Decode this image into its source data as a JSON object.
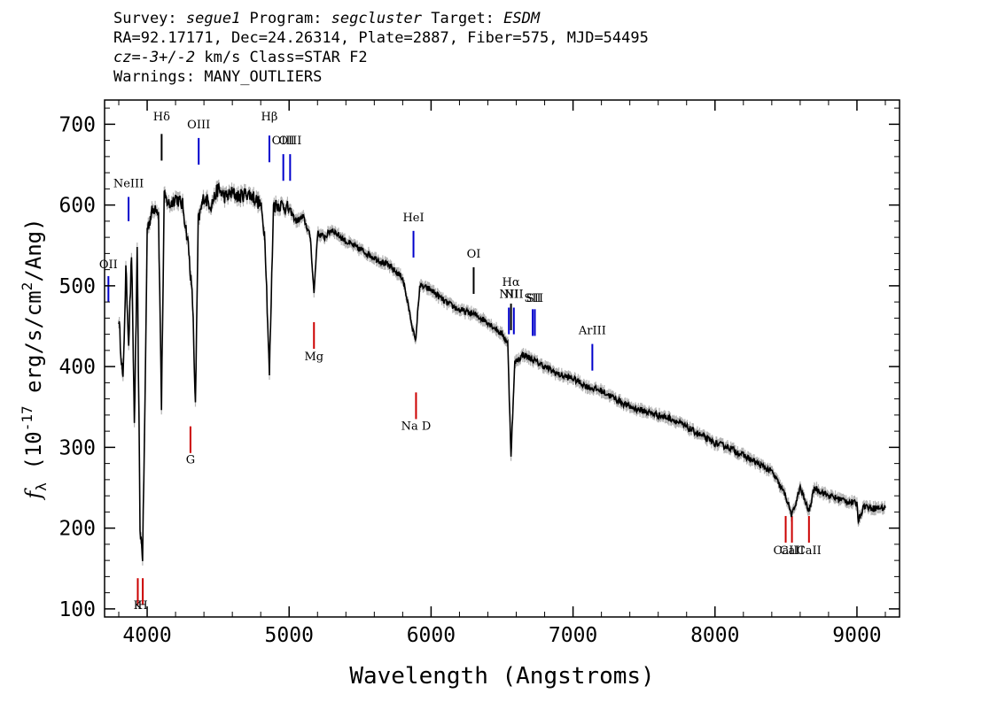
{
  "header": {
    "line1": {
      "survey_label": "Survey: ",
      "survey": "segue1",
      "program_label": " Program: ",
      "program": "segcluster",
      "target_label": " Target: ",
      "target": "ESDM"
    },
    "line2": "RA=92.17171, Dec=24.26314, Plate=2887, Fiber=575, MJD=54495",
    "line3": {
      "cz": "cz=-3+/-2",
      "rest": " km/s  Class=STAR F2"
    },
    "line4": "Warnings: MANY_OUTLIERS"
  },
  "chart_data": {
    "type": "line",
    "xlabel": "Wavelength (Angstroms)",
    "ylabel": "f_λ (10^-17 erg/s/cm^2/Ang)",
    "xlim": [
      3700,
      9300
    ],
    "ylim": [
      90,
      730
    ],
    "x_ticks": [
      4000,
      5000,
      6000,
      7000,
      8000,
      9000
    ],
    "y_ticks": [
      100,
      200,
      300,
      400,
      500,
      600,
      700
    ],
    "series": [
      {
        "color": "#000000",
        "error_color": "#b4b4b4",
        "points": [
          [
            3800,
            460
          ],
          [
            3830,
            380
          ],
          [
            3850,
            520
          ],
          [
            3870,
            430
          ],
          [
            3890,
            540
          ],
          [
            3910,
            330
          ],
          [
            3930,
            540
          ],
          [
            3950,
            200
          ],
          [
            3968,
            165
          ],
          [
            3985,
            360
          ],
          [
            4000,
            570
          ],
          [
            4030,
            590
          ],
          [
            4060,
            600
          ],
          [
            4080,
            590
          ],
          [
            4101,
            350
          ],
          [
            4120,
            610
          ],
          [
            4160,
            600
          ],
          [
            4200,
            610
          ],
          [
            4250,
            600
          ],
          [
            4290,
            550
          ],
          [
            4320,
            480
          ],
          [
            4340,
            350
          ],
          [
            4360,
            580
          ],
          [
            4400,
            610
          ],
          [
            4450,
            600
          ],
          [
            4500,
            620
          ],
          [
            4550,
            610
          ],
          [
            4600,
            615
          ],
          [
            4650,
            610
          ],
          [
            4700,
            615
          ],
          [
            4750,
            610
          ],
          [
            4800,
            600
          ],
          [
            4830,
            560
          ],
          [
            4861,
            390
          ],
          [
            4890,
            600
          ],
          [
            4950,
            600
          ],
          [
            5000,
            595
          ],
          [
            5050,
            580
          ],
          [
            5100,
            585
          ],
          [
            5150,
            560
          ],
          [
            5175,
            490
          ],
          [
            5200,
            565
          ],
          [
            5250,
            560
          ],
          [
            5300,
            570
          ],
          [
            5400,
            555
          ],
          [
            5500,
            545
          ],
          [
            5600,
            535
          ],
          [
            5700,
            525
          ],
          [
            5800,
            510
          ],
          [
            5890,
            430
          ],
          [
            5920,
            500
          ],
          [
            6000,
            495
          ],
          [
            6100,
            480
          ],
          [
            6200,
            470
          ],
          [
            6300,
            465
          ],
          [
            6400,
            455
          ],
          [
            6500,
            440
          ],
          [
            6540,
            430
          ],
          [
            6563,
            290
          ],
          [
            6590,
            405
          ],
          [
            6650,
            415
          ],
          [
            6700,
            410
          ],
          [
            6800,
            400
          ],
          [
            6900,
            390
          ],
          [
            7000,
            385
          ],
          [
            7100,
            375
          ],
          [
            7200,
            370
          ],
          [
            7300,
            360
          ],
          [
            7400,
            350
          ],
          [
            7500,
            345
          ],
          [
            7600,
            340
          ],
          [
            7700,
            335
          ],
          [
            7800,
            325
          ],
          [
            7900,
            315
          ],
          [
            8000,
            305
          ],
          [
            8100,
            300
          ],
          [
            8200,
            290
          ],
          [
            8300,
            280
          ],
          [
            8400,
            270
          ],
          [
            8498,
            240
          ],
          [
            8542,
            215
          ],
          [
            8600,
            250
          ],
          [
            8662,
            220
          ],
          [
            8700,
            250
          ],
          [
            8800,
            240
          ],
          [
            8900,
            235
          ],
          [
            9000,
            230
          ],
          [
            9010,
            210
          ],
          [
            9050,
            228
          ],
          [
            9100,
            225
          ],
          [
            9200,
            225
          ]
        ]
      }
    ],
    "emission_lines": [
      {
        "label": "NeIII",
        "x": 3869,
        "y_lo": 580,
        "y_hi": 610,
        "label_y": 622,
        "color": "#0000cc"
      },
      {
        "label": "OII",
        "x": 3727,
        "y_lo": 480,
        "y_hi": 512,
        "label_y": 522,
        "color": "#0000cc"
      },
      {
        "label": "Hδ",
        "x": 4102,
        "y_lo": 655,
        "y_hi": 688,
        "label_y": 705,
        "color": "#000000"
      },
      {
        "label": "OIII",
        "x": 4363,
        "y_lo": 650,
        "y_hi": 683,
        "label_y": 695,
        "color": "#0000cc"
      },
      {
        "label": "Hβ",
        "x": 4861,
        "y_lo": 653,
        "y_hi": 686,
        "label_y": 705,
        "color": "#0000cc"
      },
      {
        "label": "OIII",
        "x": 4959,
        "y_lo": 630,
        "y_hi": 663,
        "label_y": 675,
        "color": "#0000cc"
      },
      {
        "label": "OIII",
        "x": 5007,
        "y_lo": 630,
        "y_hi": 663,
        "label_y": 675,
        "color": "#0000cc"
      },
      {
        "label": "HeI",
        "x": 5876,
        "y_lo": 535,
        "y_hi": 568,
        "label_y": 580,
        "color": "#0000cc"
      },
      {
        "label": "OI",
        "x": 6300,
        "y_lo": 490,
        "y_hi": 523,
        "label_y": 535,
        "color": "#000000"
      },
      {
        "label": "NII",
        "x": 6548,
        "y_lo": 440,
        "y_hi": 473,
        "label_y": 485,
        "color": "#0000cc"
      },
      {
        "label": "Hα",
        "x": 6563,
        "y_lo": 445,
        "y_hi": 478,
        "label_y": 500,
        "color": "#000000"
      },
      {
        "label": "NII",
        "x": 6583,
        "y_lo": 440,
        "y_hi": 473,
        "label_y": 485,
        "color": "#0000cc"
      },
      {
        "label": "SII",
        "x": 6716,
        "y_lo": 438,
        "y_hi": 471,
        "label_y": 480,
        "color": "#0000cc"
      },
      {
        "label": "SII",
        "x": 6731,
        "y_lo": 438,
        "y_hi": 471,
        "label_y": 480,
        "color": "#0000cc"
      },
      {
        "label": "ArIII",
        "x": 7136,
        "y_lo": 395,
        "y_hi": 428,
        "label_y": 440,
        "color": "#0000cc"
      }
    ],
    "absorption_lines": [
      {
        "label": "K",
        "x": 3934,
        "y_lo": 105,
        "y_hi": 138,
        "label_y": 100,
        "color": "#cc0000"
      },
      {
        "label": "H",
        "x": 3969,
        "y_lo": 105,
        "y_hi": 138,
        "label_y": 100,
        "color": "#cc0000"
      },
      {
        "label": "G",
        "x": 4305,
        "y_lo": 293,
        "y_hi": 326,
        "label_y": 280,
        "color": "#cc0000"
      },
      {
        "label": "Mg",
        "x": 5175,
        "y_lo": 422,
        "y_hi": 455,
        "label_y": 408,
        "color": "#cc0000"
      },
      {
        "label": "Na D",
        "x": 5894,
        "y_lo": 335,
        "y_hi": 368,
        "label_y": 322,
        "color": "#cc0000"
      },
      {
        "label": "CaII",
        "x": 8498,
        "y_lo": 182,
        "y_hi": 215,
        "label_y": 168,
        "color": "#cc0000"
      },
      {
        "label": "CaII",
        "x": 8542,
        "y_lo": 182,
        "y_hi": 215,
        "label_y": 168,
        "color": "#cc0000"
      },
      {
        "label": "CaII",
        "x": 8662,
        "y_lo": 182,
        "y_hi": 215,
        "label_y": 168,
        "color": "#cc0000"
      }
    ]
  }
}
